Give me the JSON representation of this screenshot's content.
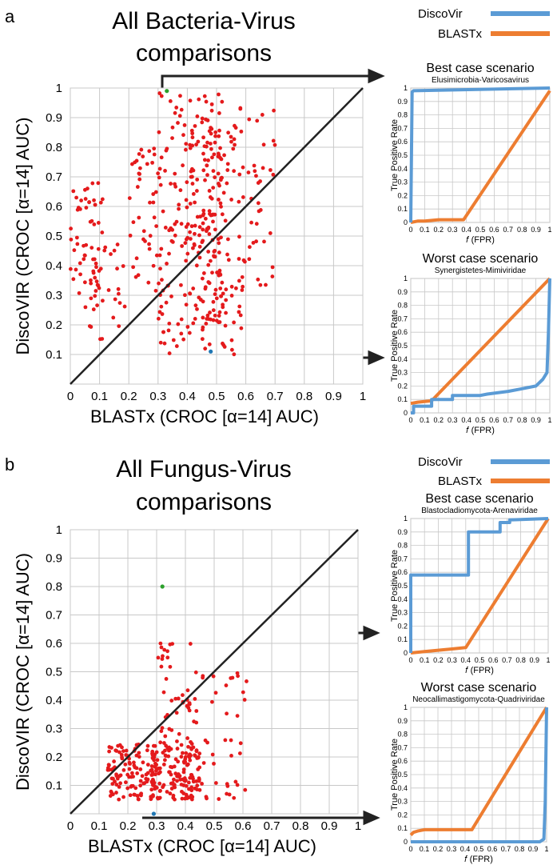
{
  "panels": [
    {
      "letter": "a",
      "title_line1": "All Bacteria-Virus",
      "title_line2": "comparisons",
      "legend": [
        {
          "label": "DiscoVir",
          "color": "#5b9bd5"
        },
        {
          "label": "BLASTx",
          "color": "#ed7d31"
        }
      ]
    },
    {
      "letter": "b",
      "title_line1": "All Fungus-Virus",
      "title_line2": "comparisons",
      "legend": [
        {
          "label": "DiscoVir",
          "color": "#5b9bd5"
        },
        {
          "label": "BLASTx",
          "color": "#ed7d31"
        }
      ]
    }
  ],
  "colors": {
    "points": "#e41a1c",
    "best_point": "#2ca02c",
    "worst_point": "#1f77b4",
    "discovir": "#5b9bd5",
    "blastx": "#ed7d31",
    "grid": "#c8c8c8",
    "diagonal": "#222222"
  },
  "chart_data": [
    {
      "type": "scatter",
      "title": "All Bacteria-Virus comparisons",
      "xlabel": "BLASTx (CROC [α=14] AUC)",
      "ylabel": "DiscoVIR (CROC [α=14] AUC)",
      "xlim": [
        0,
        1
      ],
      "ylim": [
        0,
        1
      ],
      "x_ticks": [
        "0",
        "0.1",
        "0.2",
        "0.3",
        "0.4",
        "0.5",
        "0.6",
        "0.7",
        "0.8",
        "0.9",
        "1"
      ],
      "y_ticks": [
        "0.1",
        "0.2",
        "0.3",
        "0.4",
        "0.5",
        "0.6",
        "0.7",
        "0.8",
        "0.9",
        "1"
      ],
      "grid": true,
      "reference_line": "y = x",
      "highlight_best": [
        0.33,
        0.99
      ],
      "highlight_worst": [
        0.48,
        0.11
      ],
      "clusters": [
        {
          "x_range": [
            0.0,
            0.12
          ],
          "y_range": [
            0.25,
            0.68
          ],
          "n": 60
        },
        {
          "x_range": [
            0.05,
            0.22
          ],
          "y_range": [
            0.15,
            0.5
          ],
          "n": 25
        },
        {
          "x_range": [
            0.2,
            0.32
          ],
          "y_range": [
            0.3,
            0.8
          ],
          "n": 45
        },
        {
          "x_range": [
            0.3,
            0.42
          ],
          "y_range": [
            0.1,
            0.99
          ],
          "n": 90
        },
        {
          "x_range": [
            0.4,
            0.52
          ],
          "y_range": [
            0.2,
            0.98
          ],
          "n": 130
        },
        {
          "x_range": [
            0.45,
            0.6
          ],
          "y_range": [
            0.1,
            0.9
          ],
          "n": 90
        },
        {
          "x_range": [
            0.55,
            0.7
          ],
          "y_range": [
            0.3,
            0.95
          ],
          "n": 45
        }
      ]
    },
    {
      "type": "scatter",
      "title": "All Fungus-Virus comparisons",
      "xlabel": "BLASTx (CROC [α=14] AUC)",
      "ylabel": "DiscoVIR (CROC [α=14] AUC)",
      "xlim": [
        0,
        1
      ],
      "ylim": [
        0,
        1
      ],
      "x_ticks": [
        "0",
        "0.1",
        "0.2",
        "0.3",
        "0.4",
        "0.5",
        "0.6",
        "0.7",
        "0.8",
        "0.9",
        "1"
      ],
      "y_ticks": [
        "0.1",
        "0.2",
        "0.3",
        "0.4",
        "0.5",
        "0.6",
        "0.7",
        "0.8",
        "0.9",
        "1"
      ],
      "grid": true,
      "reference_line": "y = x",
      "highlight_best": [
        0.32,
        0.8
      ],
      "highlight_worst": [
        0.29,
        0.0
      ],
      "clusters": [
        {
          "x_range": [
            0.13,
            0.3
          ],
          "y_range": [
            0.05,
            0.25
          ],
          "n": 120
        },
        {
          "x_range": [
            0.28,
            0.45
          ],
          "y_range": [
            0.05,
            0.25
          ],
          "n": 140
        },
        {
          "x_range": [
            0.3,
            0.42
          ],
          "y_range": [
            0.25,
            0.65
          ],
          "n": 40
        },
        {
          "x_range": [
            0.4,
            0.62
          ],
          "y_range": [
            0.05,
            0.5
          ],
          "n": 50
        }
      ]
    },
    {
      "type": "line",
      "title": "Best case scenario",
      "subtitle": "Elusimicrobia-Varicosavirus",
      "xlabel": "𝑓 (FPR)",
      "ylabel": "True Positive Rate",
      "x_ticks": [
        "0",
        "0.1",
        "0.2",
        "0.3",
        "0.4",
        "0.5",
        "0.6",
        "0.7",
        "0.8",
        "0.9",
        "1"
      ],
      "y_ticks": [
        "0",
        "0.1",
        "0.2",
        "0.3",
        "0.4",
        "0.5",
        "0.6",
        "0.7",
        "0.8",
        "0.9",
        "1"
      ],
      "series": [
        {
          "name": "DiscoVir",
          "x": [
            0,
            0.01,
            0.02,
            1
          ],
          "y": [
            0,
            0.97,
            0.98,
            1
          ]
        },
        {
          "name": "BLASTx",
          "x": [
            0,
            0.05,
            0.1,
            0.2,
            0.3,
            0.38,
            1
          ],
          "y": [
            0,
            0.01,
            0.01,
            0.02,
            0.02,
            0.02,
            0.98
          ]
        }
      ]
    },
    {
      "type": "line",
      "title": "Worst case scenario",
      "subtitle": "Synergistetes-Mimiviridae",
      "xlabel": "𝑓 (FPR)",
      "ylabel": "True Positive Rate",
      "x_ticks": [
        "0",
        "0.1",
        "0.2",
        "0.3",
        "0.4",
        "0.5",
        "0.6",
        "0.7",
        "0.8",
        "0.9",
        "1"
      ],
      "y_ticks": [
        "0",
        "0.1",
        "0.2",
        "0.3",
        "0.4",
        "0.5",
        "0.6",
        "0.7",
        "0.8",
        "0.9",
        "1"
      ],
      "series": [
        {
          "name": "DiscoVir",
          "x": [
            0,
            0.02,
            0.02,
            0.15,
            0.15,
            0.3,
            0.3,
            0.5,
            0.55,
            0.7,
            0.8,
            0.9,
            0.95,
            0.98,
            0.99,
            1
          ],
          "y": [
            0,
            0,
            0.05,
            0.05,
            0.1,
            0.1,
            0.13,
            0.13,
            0.14,
            0.16,
            0.18,
            0.2,
            0.25,
            0.3,
            0.6,
            1
          ]
        },
        {
          "name": "BLASTx",
          "x": [
            0,
            0.05,
            0.15,
            1
          ],
          "y": [
            0.07,
            0.08,
            0.09,
            1
          ]
        }
      ]
    },
    {
      "type": "line",
      "title": "Best case scenario",
      "subtitle": "Blastocladiomycota-Arenaviridae",
      "xlabel": "𝑓 (FPR)",
      "ylabel": "True Positive Rate",
      "x_ticks": [
        "0",
        "0.1",
        "0.2",
        "0.3",
        "0.4",
        "0.5",
        "0.6",
        "0.7",
        "0.8",
        "0.9",
        "1"
      ],
      "y_ticks": [
        "0",
        "0.1",
        "0.2",
        "0.3",
        "0.4",
        "0.5",
        "0.6",
        "0.7",
        "0.8",
        "0.9",
        "1"
      ],
      "series": [
        {
          "name": "DiscoVir",
          "x": [
            0,
            0,
            0.42,
            0.42,
            0.65,
            0.65,
            0.72,
            0.72,
            1
          ],
          "y": [
            0,
            0.58,
            0.58,
            0.9,
            0.9,
            0.97,
            0.97,
            0.99,
            1
          ]
        },
        {
          "name": "BLASTx",
          "x": [
            0,
            0.1,
            0.2,
            0.3,
            0.4,
            1
          ],
          "y": [
            0,
            0.01,
            0.02,
            0.03,
            0.04,
            1
          ]
        }
      ]
    },
    {
      "type": "line",
      "title": "Worst case scenario",
      "subtitle": "Neocallimastigomycota-Quadriviridae",
      "xlabel": "𝑓 (FPR)",
      "ylabel": "True Positive Rate",
      "x_ticks": [
        "0",
        "0.1",
        "0.2",
        "0.3",
        "0.4",
        "0.5",
        "0.6",
        "0.7",
        "0.8",
        "0.9",
        "1"
      ],
      "y_ticks": [
        "0",
        "0.1",
        "0.2",
        "0.3",
        "0.4",
        "0.5",
        "0.6",
        "0.7",
        "0.8",
        "0.9",
        "1"
      ],
      "series": [
        {
          "name": "DiscoVir",
          "x": [
            0,
            0.5,
            0.95,
            0.98,
            0.99,
            1
          ],
          "y": [
            0,
            0,
            0,
            0.02,
            0.3,
            1
          ]
        },
        {
          "name": "BLASTx",
          "x": [
            0,
            0.02,
            0.05,
            0.1,
            0.45,
            1
          ],
          "y": [
            0.05,
            0.07,
            0.08,
            0.09,
            0.09,
            1
          ]
        }
      ]
    }
  ]
}
